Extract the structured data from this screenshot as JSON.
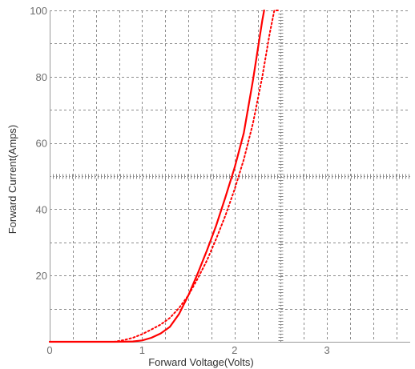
{
  "chart_data": {
    "type": "line",
    "title": "",
    "xlabel": "Forward Voltage(Volts)",
    "ylabel": "Forward Current(Amps)",
    "xlim": [
      0,
      3.9
    ],
    "ylim": [
      0,
      100
    ],
    "x_ticks": [
      0,
      1,
      2,
      3
    ],
    "x_tick_labels": [
      "0",
      "1",
      "2",
      "3"
    ],
    "y_ticks": [
      20,
      40,
      60,
      80,
      100
    ],
    "y_tick_labels": [
      "20",
      "40",
      "60",
      "80",
      "100"
    ],
    "grid": true,
    "legend": "none",
    "series": [
      {
        "style": "solid",
        "color": "#ff0000",
        "points": [
          [
            0,
            0
          ],
          [
            0.7,
            0
          ],
          [
            0.9,
            0.1
          ],
          [
            1.0,
            0.4
          ],
          [
            1.1,
            1.2
          ],
          [
            1.2,
            2.5
          ],
          [
            1.3,
            4.5
          ],
          [
            1.4,
            8.4
          ],
          [
            1.5,
            14
          ],
          [
            1.6,
            20.5
          ],
          [
            1.7,
            27.5
          ],
          [
            1.8,
            35
          ],
          [
            1.9,
            43.5
          ],
          [
            2.0,
            52.5
          ],
          [
            2.1,
            63
          ],
          [
            2.2,
            79
          ],
          [
            2.25,
            88
          ],
          [
            2.3,
            97
          ],
          [
            2.32,
            100
          ]
        ]
      },
      {
        "style": "dotted",
        "color": "#ff0000",
        "points": [
          [
            0,
            0
          ],
          [
            0.7,
            0
          ],
          [
            0.8,
            0.5
          ],
          [
            0.9,
            1.2
          ],
          [
            1.0,
            2.3
          ],
          [
            1.1,
            3.7
          ],
          [
            1.2,
            5.2
          ],
          [
            1.3,
            7.2
          ],
          [
            1.4,
            10.2
          ],
          [
            1.5,
            14
          ],
          [
            1.6,
            19
          ],
          [
            1.7,
            24.5
          ],
          [
            1.8,
            31
          ],
          [
            1.9,
            38
          ],
          [
            2.0,
            46
          ],
          [
            2.1,
            55
          ],
          [
            2.2,
            66
          ],
          [
            2.3,
            80
          ],
          [
            2.38,
            93
          ],
          [
            2.43,
            100
          ],
          [
            2.48,
            100
          ]
        ]
      }
    ]
  }
}
